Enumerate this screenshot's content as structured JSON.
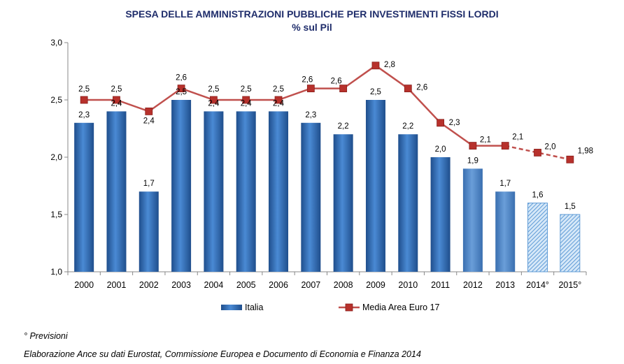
{
  "chart_data": {
    "type": "bar",
    "title": "SPESA DELLE AMMINISTRAZIONI PUBBLICHE PER INVESTIMENTI FISSI LORDI",
    "subtitle": "% sul Pil",
    "categories": [
      "2000",
      "2001",
      "2002",
      "2003",
      "2004",
      "2005",
      "2006",
      "2007",
      "2008",
      "2009",
      "2010",
      "2011",
      "2012",
      "2013",
      "2014°",
      "2015°"
    ],
    "series": [
      {
        "name": "Italia",
        "type": "bar",
        "values": [
          2.3,
          2.4,
          1.7,
          2.5,
          2.4,
          2.4,
          2.4,
          2.3,
          2.2,
          2.5,
          2.2,
          2.0,
          1.9,
          1.7,
          1.6,
          1.5
        ],
        "labels": [
          "2,3",
          "2,4",
          "1,7",
          "2,5",
          "2,4",
          "2,4",
          "2,4",
          "2,3",
          "2,2",
          "2,5",
          "2,2",
          "2,0",
          "1,9",
          "1,7",
          "1,6",
          "1,5"
        ],
        "forecast_from_index": 14
      },
      {
        "name": "Media Area Euro 17",
        "type": "line",
        "values": [
          2.5,
          2.5,
          2.4,
          2.6,
          2.5,
          2.5,
          2.5,
          2.6,
          2.6,
          2.8,
          2.6,
          2.3,
          2.1,
          2.1,
          2.04,
          1.98
        ],
        "labels": [
          "2,5",
          "2,5",
          "2,4",
          "2,6",
          "2,5",
          "2,5",
          "2,5",
          "2,6",
          "2,6",
          "2,8",
          "2,6",
          "2,3",
          "2,1",
          "2,1",
          "2,0",
          "1,98"
        ],
        "forecast_from_index": 14
      }
    ],
    "ylim": [
      1.0,
      3.0
    ],
    "yticks": [
      1.0,
      1.5,
      2.0,
      2.5,
      3.0
    ],
    "ytick_labels": [
      "1,0",
      "1,5",
      "2,0",
      "2,5",
      "3,0"
    ],
    "grid": false,
    "legend_position": "bottom",
    "colors": {
      "bar": "#3a78c4",
      "bar_dark": "#1f4e8c",
      "bar_forecast": "#9cc4ea",
      "line": "#c0504d",
      "marker": "#b7312c",
      "title": "#1f2d6b"
    }
  },
  "footnote": "° Previsioni",
  "source": "Elaborazione Ance su dati Eurostat, Commissione Europea e Documento di Economia e Finanza 2014"
}
